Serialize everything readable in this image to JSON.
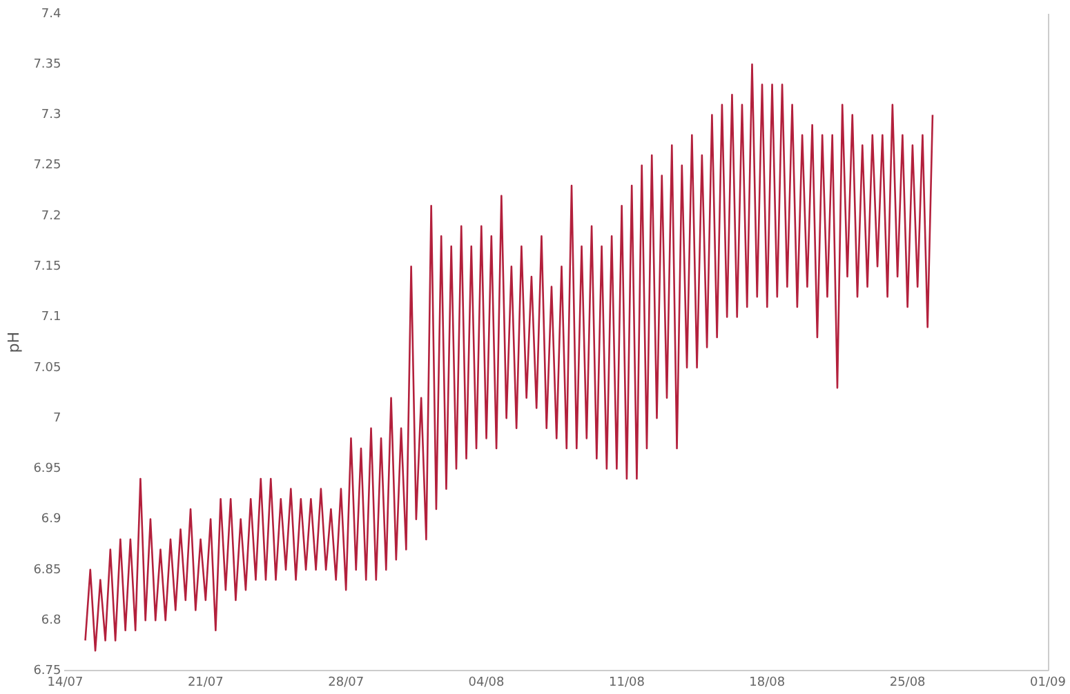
{
  "chart_data": {
    "type": "line",
    "ylabel": "pH",
    "xlim": [
      "--07-14",
      "--09-01"
    ],
    "xticks": [
      {
        "value": "--07-14",
        "label": "14/07"
      },
      {
        "value": "--07-21",
        "label": "21/07"
      },
      {
        "value": "--07-28",
        "label": "28/07"
      },
      {
        "value": "--08-04",
        "label": "04/08"
      },
      {
        "value": "--08-11",
        "label": "11/08"
      },
      {
        "value": "--08-18",
        "label": "18/08"
      },
      {
        "value": "--08-25",
        "label": "25/08"
      },
      {
        "value": "--09-01",
        "label": "01/09"
      }
    ],
    "ylim": [
      6.75,
      7.4
    ],
    "yticks": [
      6.75,
      6.8,
      6.85,
      6.9,
      6.95,
      7,
      7.05,
      7.1,
      7.15,
      7.2,
      7.25,
      7.3,
      7.35,
      7.4
    ],
    "grid": false,
    "legend": false,
    "marker": "none",
    "line_style": "solid",
    "x": [
      "--07-15T00:00",
      "--07-15T06:00",
      "--07-15T12:00",
      "--07-15T18:00",
      "--07-16T00:00",
      "--07-16T06:00",
      "--07-16T12:00",
      "--07-16T18:00",
      "--07-17T00:00",
      "--07-17T06:00",
      "--07-17T12:00",
      "--07-17T18:00",
      "--07-18T00:00",
      "--07-18T06:00",
      "--07-18T12:00",
      "--07-18T18:00",
      "--07-19T00:00",
      "--07-19T06:00",
      "--07-19T12:00",
      "--07-19T18:00",
      "--07-20T00:00",
      "--07-20T06:00",
      "--07-20T12:00",
      "--07-20T18:00",
      "--07-21T00:00",
      "--07-21T06:00",
      "--07-21T12:00",
      "--07-21T18:00",
      "--07-22T00:00",
      "--07-22T06:00",
      "--07-22T12:00",
      "--07-22T18:00",
      "--07-23T00:00",
      "--07-23T06:00",
      "--07-23T12:00",
      "--07-23T18:00",
      "--07-24T00:00",
      "--07-24T06:00",
      "--07-24T12:00",
      "--07-24T18:00",
      "--07-25T00:00",
      "--07-25T06:00",
      "--07-25T12:00",
      "--07-25T18:00",
      "--07-26T00:00",
      "--07-26T06:00",
      "--07-26T12:00",
      "--07-26T18:00",
      "--07-27T00:00",
      "--07-27T06:00",
      "--07-27T12:00",
      "--07-27T18:00",
      "--07-28T00:00",
      "--07-28T06:00",
      "--07-28T12:00",
      "--07-28T18:00",
      "--07-29T00:00",
      "--07-29T06:00",
      "--07-29T12:00",
      "--07-29T18:00",
      "--07-30T00:00",
      "--07-30T06:00",
      "--07-30T12:00",
      "--07-30T18:00",
      "--07-31T00:00",
      "--07-31T06:00",
      "--07-31T12:00",
      "--07-31T18:00",
      "--08-01T00:00",
      "--08-01T06:00",
      "--08-01T12:00",
      "--08-01T18:00",
      "--08-02T00:00",
      "--08-02T06:00",
      "--08-02T12:00",
      "--08-02T18:00",
      "--08-03T00:00",
      "--08-03T06:00",
      "--08-03T12:00",
      "--08-03T18:00",
      "--08-04T00:00",
      "--08-04T06:00",
      "--08-04T12:00",
      "--08-04T18:00",
      "--08-05T00:00",
      "--08-05T06:00",
      "--08-05T12:00",
      "--08-05T18:00",
      "--08-06T00:00",
      "--08-06T06:00",
      "--08-06T12:00",
      "--08-06T18:00",
      "--08-07T00:00",
      "--08-07T06:00",
      "--08-07T12:00",
      "--08-07T18:00",
      "--08-08T00:00",
      "--08-08T06:00",
      "--08-08T12:00",
      "--08-08T18:00",
      "--08-09T00:00",
      "--08-09T06:00",
      "--08-09T12:00",
      "--08-09T18:00",
      "--08-10T00:00",
      "--08-10T06:00",
      "--08-10T12:00",
      "--08-10T18:00",
      "--08-11T00:00",
      "--08-11T06:00",
      "--08-11T12:00",
      "--08-11T18:00",
      "--08-12T00:00",
      "--08-12T06:00",
      "--08-12T12:00",
      "--08-12T18:00",
      "--08-13T00:00",
      "--08-13T06:00",
      "--08-13T12:00",
      "--08-13T18:00",
      "--08-14T00:00",
      "--08-14T06:00",
      "--08-14T12:00",
      "--08-14T18:00",
      "--08-15T00:00",
      "--08-15T06:00",
      "--08-15T12:00",
      "--08-15T18:00",
      "--08-16T00:00",
      "--08-16T06:00",
      "--08-16T12:00",
      "--08-16T18:00",
      "--08-17T00:00",
      "--08-17T06:00",
      "--08-17T12:00",
      "--08-17T18:00",
      "--08-18T00:00",
      "--08-18T06:00",
      "--08-18T12:00",
      "--08-18T18:00",
      "--08-19T00:00",
      "--08-19T06:00",
      "--08-19T12:00",
      "--08-19T18:00",
      "--08-20T00:00",
      "--08-20T06:00",
      "--08-20T12:00",
      "--08-20T18:00",
      "--08-21T00:00",
      "--08-21T06:00",
      "--08-21T12:00",
      "--08-21T18:00",
      "--08-22T00:00",
      "--08-22T06:00",
      "--08-22T12:00",
      "--08-22T18:00",
      "--08-23T00:00",
      "--08-23T06:00",
      "--08-23T12:00",
      "--08-23T18:00",
      "--08-24T00:00",
      "--08-24T06:00",
      "--08-24T12:00",
      "--08-24T18:00",
      "--08-25T00:00",
      "--08-25T06:00",
      "--08-25T12:00",
      "--08-25T18:00",
      "--08-26T00:00",
      "--08-26T06:00"
    ],
    "series": [
      {
        "color": "#b3203c",
        "values": [
          6.78,
          6.85,
          6.77,
          6.84,
          6.78,
          6.87,
          6.78,
          6.88,
          6.79,
          6.88,
          6.79,
          6.94,
          6.8,
          6.9,
          6.8,
          6.87,
          6.8,
          6.88,
          6.81,
          6.89,
          6.82,
          6.91,
          6.81,
          6.88,
          6.82,
          6.9,
          6.79,
          6.92,
          6.83,
          6.92,
          6.82,
          6.9,
          6.83,
          6.92,
          6.84,
          6.94,
          6.84,
          6.94,
          6.84,
          6.92,
          6.85,
          6.93,
          6.84,
          6.92,
          6.85,
          6.92,
          6.85,
          6.93,
          6.85,
          6.91,
          6.84,
          6.93,
          6.83,
          6.98,
          6.85,
          6.97,
          6.84,
          6.99,
          6.84,
          6.98,
          6.85,
          7.02,
          6.86,
          6.99,
          6.87,
          7.15,
          6.9,
          7.02,
          6.88,
          7.21,
          6.91,
          7.18,
          6.93,
          7.17,
          6.95,
          7.19,
          6.96,
          7.17,
          6.97,
          7.19,
          6.98,
          7.18,
          6.97,
          7.22,
          7,
          7.15,
          6.99,
          7.17,
          7.02,
          7.14,
          7.01,
          7.18,
          6.99,
          7.13,
          6.98,
          7.15,
          6.97,
          7.23,
          6.97,
          7.17,
          6.98,
          7.19,
          6.96,
          7.17,
          6.95,
          7.18,
          6.95,
          7.21,
          6.94,
          7.23,
          6.94,
          7.25,
          6.97,
          7.26,
          7,
          7.24,
          7.02,
          7.27,
          6.97,
          7.25,
          7.05,
          7.28,
          7.05,
          7.26,
          7.07,
          7.3,
          7.08,
          7.31,
          7.1,
          7.32,
          7.1,
          7.31,
          7.11,
          7.35,
          7.12,
          7.33,
          7.11,
          7.33,
          7.12,
          7.33,
          7.13,
          7.31,
          7.11,
          7.28,
          7.13,
          7.29,
          7.08,
          7.28,
          7.12,
          7.28,
          7.03,
          7.31,
          7.14,
          7.3,
          7.12,
          7.27,
          7.13,
          7.28,
          7.15,
          7.28,
          7.12,
          7.31,
          7.14,
          7.28,
          7.11,
          7.27,
          7.13,
          7.28,
          7.09,
          7.3
        ]
      }
    ]
  }
}
